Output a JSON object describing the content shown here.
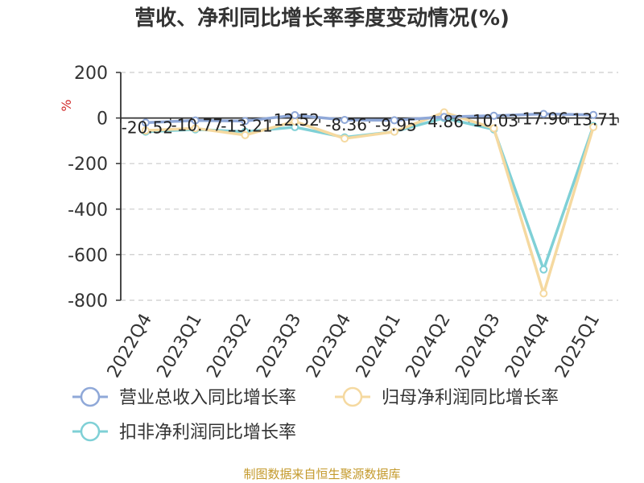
{
  "title": "营收、净利同比增长率季度变动情况(%)",
  "source": "制图数据来自恒生聚源数据库",
  "colors": {
    "revenue": "#8fa8d8",
    "parent_profit": "#f5d9a0",
    "deducted_profit": "#7fd0d6",
    "axis": "#333333",
    "grid": "#cccccc",
    "unit": "#d12c2c"
  },
  "chart_data": {
    "type": "line",
    "ylabel": "%",
    "ylim": [
      -800,
      200
    ],
    "yticks": [
      200,
      0,
      -200,
      -400,
      -600,
      -800
    ],
    "grid": true,
    "legend_position": "bottom-left",
    "categories": [
      "2022Q4",
      "2023Q1",
      "2023Q2",
      "2023Q3",
      "2023Q4",
      "2024Q1",
      "2024Q2",
      "2024Q3",
      "2024Q4",
      "2025Q1"
    ],
    "series": [
      {
        "name": "营业总收入同比增长率",
        "color_key": "revenue",
        "values": [
          -20.52,
          -10.77,
          -13.21,
          12.52,
          -8.36,
          -9.95,
          4.86,
          10.03,
          17.96,
          13.71
        ],
        "labels": [
          "-20.52",
          "-10.77",
          "-13.21",
          "12.52",
          "-8.36",
          "-9.95",
          "4.86",
          "10.03",
          "17.96",
          "13.71"
        ]
      },
      {
        "name": "归母净利润同比增长率",
        "color_key": "parent_profit",
        "values": [
          -55,
          -45,
          -75,
          -15,
          -90,
          -60,
          25,
          -45,
          -770,
          -40
        ]
      },
      {
        "name": "扣非净利润同比增长率",
        "color_key": "deducted_profit",
        "values": [
          -60,
          -50,
          -60,
          -40,
          -85,
          -60,
          0,
          -50,
          -665,
          -35
        ]
      }
    ]
  }
}
